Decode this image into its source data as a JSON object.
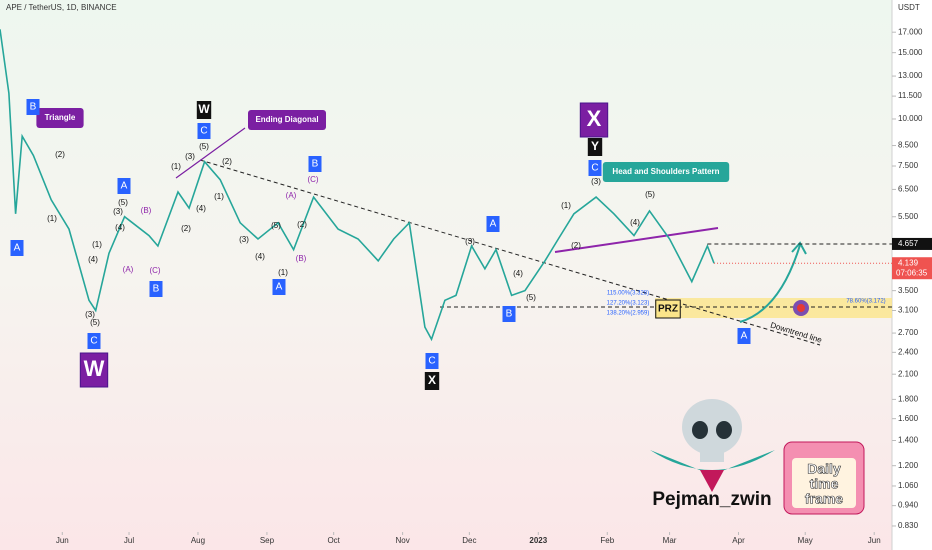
{
  "chart_data": {
    "type": "line",
    "title": "APE / TetherUS, 1D, BINANCE",
    "y_unit": "USDT",
    "log_scale": true,
    "color": "#26a69a",
    "xlim": [
      -28,
      373
    ],
    "ylim": [
      0.8,
      20.7
    ],
    "xticks": [
      {
        "value": 0,
        "label": "Jun"
      },
      {
        "value": 30,
        "label": "Jul"
      },
      {
        "value": 61,
        "label": "Aug"
      },
      {
        "value": 92,
        "label": "Sep"
      },
      {
        "value": 122,
        "label": "Oct"
      },
      {
        "value": 153,
        "label": "Nov"
      },
      {
        "value": 183,
        "label": "Dec"
      },
      {
        "value": 214,
        "label": "2023"
      },
      {
        "value": 245,
        "label": "Feb"
      },
      {
        "value": 273,
        "label": "Mar"
      },
      {
        "value": 304,
        "label": "Apr"
      },
      {
        "value": 334,
        "label": "May"
      },
      {
        "value": 365,
        "label": "Jun"
      }
    ],
    "yticks": [
      {
        "value": 17,
        "label": "17.000"
      },
      {
        "value": 15,
        "label": "15.000"
      },
      {
        "value": 13,
        "label": "13.000"
      },
      {
        "value": 11.5,
        "label": "11.500"
      },
      {
        "value": 10,
        "label": "10.000"
      },
      {
        "value": 8.5,
        "label": "8.500"
      },
      {
        "value": 7.5,
        "label": "7.500"
      },
      {
        "value": 6.5,
        "label": "6.500"
      },
      {
        "value": 5.5,
        "label": "5.500"
      },
      {
        "value": 3.5,
        "label": "3.500"
      },
      {
        "value": 3.1,
        "label": "3.100"
      },
      {
        "value": 2.7,
        "label": "2.700"
      },
      {
        "value": 2.4,
        "label": "2.400"
      },
      {
        "value": 2.1,
        "label": "2.100"
      },
      {
        "value": 1.8,
        "label": "1.800"
      },
      {
        "value": 1.6,
        "label": "1.600"
      },
      {
        "value": 1.4,
        "label": "1.400"
      },
      {
        "value": 1.2,
        "label": "1.200"
      },
      {
        "value": 1.06,
        "label": "1.060"
      },
      {
        "value": 0.94,
        "label": "0.940"
      },
      {
        "value": 0.83,
        "label": "0.830"
      }
    ],
    "x": [
      -28,
      -24,
      -21,
      -18,
      -13,
      -5,
      3,
      12,
      15,
      21,
      28,
      39,
      43,
      52,
      57,
      64,
      71,
      80,
      88,
      97,
      104,
      113,
      124,
      133,
      142,
      149,
      156,
      163,
      166,
      172,
      177,
      184,
      190,
      195,
      202,
      208,
      217,
      223,
      230,
      240,
      248,
      257,
      264,
      273,
      283,
      290,
      293
    ],
    "values": [
      17.3,
      11.7,
      5.6,
      9.0,
      8.0,
      6.1,
      5.1,
      3.3,
      3.1,
      4.4,
      5.5,
      4.9,
      4.6,
      6.4,
      5.8,
      7.7,
      6.9,
      5.3,
      4.8,
      5.3,
      4.5,
      6.2,
      5.1,
      4.8,
      4.2,
      4.8,
      5.3,
      2.8,
      2.6,
      3.3,
      3.4,
      4.6,
      4.0,
      4.5,
      3.4,
      3.5,
      4.2,
      4.8,
      5.6,
      6.2,
      5.6,
      4.9,
      5.7,
      4.8,
      3.7,
      4.6,
      4.139
    ],
    "level": {
      "value": 4.657,
      "label": "4.657"
    },
    "last_price": {
      "value": 4.139,
      "label": "4.139"
    },
    "countdown": "07:06:35",
    "annotations": [
      {
        "text": "Triangle",
        "style": "callout"
      },
      {
        "text": "Ending Diagonal",
        "style": "callout"
      },
      {
        "text": "Head and Shoulders Pattern",
        "style": "teal"
      },
      {
        "text": "PRZ",
        "style": "prz"
      },
      {
        "text": "Downtrend line",
        "style": "plain"
      },
      {
        "text": "115.00%(3.328)",
        "style": "fib"
      },
      {
        "text": "127.20%(3.123)",
        "style": "fib"
      },
      {
        "text": "138.20%(2.959)",
        "style": "fib"
      },
      {
        "text": "78.60%(3.172)",
        "style": "fib"
      },
      {
        "text": "W",
        "style": "big"
      },
      {
        "text": "X",
        "style": "big"
      },
      {
        "text": "W",
        "style": "black"
      },
      {
        "text": "X",
        "style": "black"
      },
      {
        "text": "Y",
        "style": "black"
      },
      {
        "text": "B",
        "style": "box"
      },
      {
        "text": "A",
        "style": "box"
      },
      {
        "text": "C",
        "style": "box"
      },
      {
        "text": "A",
        "style": "box"
      },
      {
        "text": "B",
        "style": "box"
      },
      {
        "text": "C",
        "style": "box"
      },
      {
        "text": "B",
        "style": "box"
      },
      {
        "text": "A",
        "style": "box"
      },
      {
        "text": "C",
        "style": "box"
      },
      {
        "text": "A",
        "style": "box"
      },
      {
        "text": "B",
        "style": "box"
      },
      {
        "text": "C",
        "style": "box"
      },
      {
        "text": "A",
        "style": "box"
      },
      {
        "text": "(A)",
        "style": "ptext"
      },
      {
        "text": "(B)",
        "style": "ptext"
      },
      {
        "text": "(C)",
        "style": "ptext"
      },
      {
        "text": "(A)",
        "style": "ptext"
      },
      {
        "text": "(B)",
        "style": "ptext"
      },
      {
        "text": "(C)",
        "style": "ptext"
      },
      {
        "text": "(1)",
        "style": "text"
      },
      {
        "text": "(2)",
        "style": "text"
      },
      {
        "text": "(3)",
        "style": "text"
      },
      {
        "text": "(4)",
        "style": "text"
      },
      {
        "text": "(5)",
        "style": "text"
      },
      {
        "text": "(1)",
        "style": "text"
      },
      {
        "text": "(3)",
        "style": "text"
      },
      {
        "text": "(4)",
        "style": "text"
      },
      {
        "text": "(5)",
        "style": "text"
      },
      {
        "text": "(1)",
        "style": "text"
      },
      {
        "text": "(2)",
        "style": "text"
      },
      {
        "text": "(3)",
        "style": "text"
      },
      {
        "text": "(4)",
        "style": "text"
      },
      {
        "text": "(5)",
        "style": "text"
      },
      {
        "text": "(1)",
        "style": "text"
      },
      {
        "text": "(2)",
        "style": "text"
      },
      {
        "text": "(3)",
        "style": "text"
      },
      {
        "text": "(4)",
        "style": "text"
      },
      {
        "text": "(5)",
        "style": "text"
      },
      {
        "text": "(1)",
        "style": "text"
      },
      {
        "text": "(2)",
        "style": "text"
      },
      {
        "text": "(3)",
        "style": "text"
      },
      {
        "text": "(4)",
        "style": "text"
      },
      {
        "text": "(5)",
        "style": "text"
      },
      {
        "text": "(1)",
        "style": "text"
      },
      {
        "text": "(2)",
        "style": "text"
      },
      {
        "text": "(3)",
        "style": "text"
      },
      {
        "text": "(4)",
        "style": "text"
      },
      {
        "text": "(5)",
        "style": "text"
      }
    ],
    "author": "Pejman_zwin",
    "badge": [
      "Daily",
      "time",
      "frame"
    ]
  }
}
